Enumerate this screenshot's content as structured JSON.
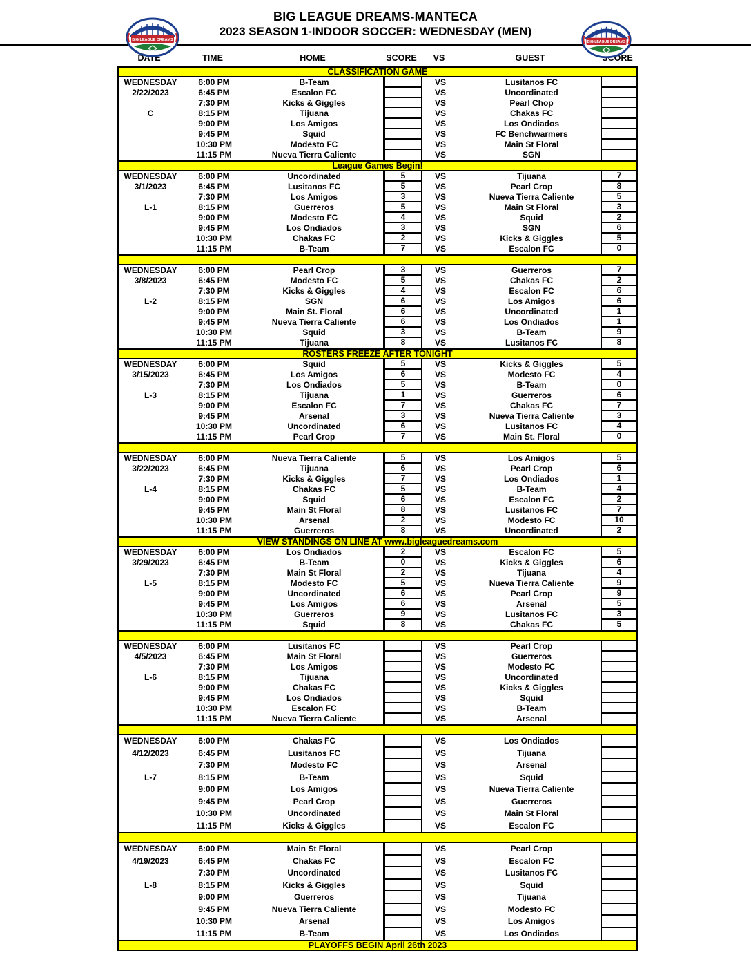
{
  "header": {
    "title": "BIG LEAGUE DREAMS-MANTECA",
    "subtitle": "2023 SEASON 1-INDOOR SOCCER: WEDNESDAY (MEN)",
    "logo_text": "BIG LEAGUE DREAMS"
  },
  "columns": {
    "date": "DATE",
    "time": "TIME",
    "home": "HOME",
    "score_home": "SCORE",
    "vs": "VS",
    "guest": "GUEST",
    "score_guest": "SCORE"
  },
  "vs_label": "VS",
  "footer": {
    "playoffs_banner": "PLAYOFFS BEGIN April 26th 2023"
  },
  "colors": {
    "highlight": "#FFFF00",
    "border": "#000000",
    "logo_blue": "#1b3e8f",
    "logo_red": "#c4242b",
    "logo_green": "#1f7d36"
  },
  "blocks": [
    {
      "day": "WEDNESDAY",
      "date": "2/22/2023",
      "week": "C",
      "banner_above": "CLASSIFICATION GAME",
      "tall": false,
      "rows": [
        {
          "time": "6:00 PM",
          "home": "B-Team",
          "home_score": "",
          "guest": "Lusitanos FC",
          "guest_score": ""
        },
        {
          "time": "6:45 PM",
          "home": "Escalon FC",
          "home_score": "",
          "guest": "Uncordinated",
          "guest_score": ""
        },
        {
          "time": "7:30 PM",
          "home": "Kicks & Giggles",
          "home_score": "",
          "guest": "Pearl Chop",
          "guest_score": ""
        },
        {
          "time": "8:15 PM",
          "home": "Tijuana",
          "home_score": "",
          "guest": "Chakas FC",
          "guest_score": ""
        },
        {
          "time": "9:00 PM",
          "home": "Los Amigos",
          "home_score": "",
          "guest": "Los Ondiados",
          "guest_score": ""
        },
        {
          "time": "9:45 PM",
          "home": "Squid",
          "home_score": "",
          "guest": "FC Benchwarmers",
          "guest_score": ""
        },
        {
          "time": "10:30 PM",
          "home": "Modesto FC",
          "home_score": "",
          "guest": "Main St Floral",
          "guest_score": ""
        },
        {
          "time": "11:15 PM",
          "home": "Nueva Tierra Caliente",
          "home_score": "",
          "guest": "SGN",
          "guest_score": ""
        }
      ]
    },
    {
      "day": "WEDNESDAY",
      "date": "3/1/2023",
      "week": "L-1",
      "banner_above": "League Games Begin!",
      "tall": false,
      "rows": [
        {
          "time": "6:00 PM",
          "home": "Uncordinated",
          "home_score": "5",
          "guest": "Tijuana",
          "guest_score": "7"
        },
        {
          "time": "6:45 PM",
          "home": "Lusitanos FC",
          "home_score": "5",
          "guest": "Pearl Crop",
          "guest_score": "8"
        },
        {
          "time": "7:30 PM",
          "home": "Los Amigos",
          "home_score": "3",
          "guest": "Nueva Tierra Caliente",
          "guest_score": "5"
        },
        {
          "time": "8:15 PM",
          "home": "Guerreros",
          "home_score": "5",
          "guest": "Main St Floral",
          "guest_score": "3"
        },
        {
          "time": "9:00 PM",
          "home": "Modesto FC",
          "home_score": "4",
          "guest": "Squid",
          "guest_score": "2"
        },
        {
          "time": "9:45 PM",
          "home": "Los Ondiados",
          "home_score": "3",
          "guest": "SGN",
          "guest_score": "6"
        },
        {
          "time": "10:30 PM",
          "home": "Chakas FC",
          "home_score": "2",
          "guest": "Kicks & Giggles",
          "guest_score": "5"
        },
        {
          "time": "11:15 PM",
          "home": "B-Team",
          "home_score": "7",
          "guest": "Escalon FC",
          "guest_score": "0"
        }
      ]
    },
    {
      "day": "WEDNESDAY",
      "date": "3/8/2023",
      "week": "L-2",
      "banner_above": "",
      "tall": false,
      "rows": [
        {
          "time": "6:00 PM",
          "home": "Pearl Crop",
          "home_score": "3",
          "guest": "Guerreros",
          "guest_score": "7"
        },
        {
          "time": "6:45 PM",
          "home": "Modesto FC",
          "home_score": "5",
          "guest": "Chakas FC",
          "guest_score": "2"
        },
        {
          "time": "7:30 PM",
          "home": "Kicks & Giggles",
          "home_score": "4",
          "guest": "Escalon FC",
          "guest_score": "6"
        },
        {
          "time": "8:15 PM",
          "home": "SGN",
          "home_score": "6",
          "guest": "Los Amigos",
          "guest_score": "6"
        },
        {
          "time": "9:00 PM",
          "home": "Main St. Floral",
          "home_score": "6",
          "guest": "Uncordinated",
          "guest_score": "1"
        },
        {
          "time": "9:45 PM",
          "home": "Nueva Tierra Caliente",
          "home_score": "6",
          "guest": "Los Ondiados",
          "guest_score": "1"
        },
        {
          "time": "10:30 PM",
          "home": "Squid",
          "home_score": "3",
          "guest": "B-Team",
          "guest_score": "9"
        },
        {
          "time": "11:15 PM",
          "home": "Tijuana",
          "home_score": "8",
          "guest": "Lusitanos FC",
          "guest_score": "8"
        }
      ]
    },
    {
      "day": "WEDNESDAY",
      "date": "3/15/2023",
      "week": "L-3",
      "banner_above": "ROSTERS FREEZE AFTER TONIGHT",
      "tall": false,
      "rows": [
        {
          "time": "6:00 PM",
          "home": "Squid",
          "home_score": "5",
          "guest": "Kicks & Giggles",
          "guest_score": "5"
        },
        {
          "time": "6:45 PM",
          "home": "Los Amigos",
          "home_score": "6",
          "guest": "Modesto FC",
          "guest_score": "4"
        },
        {
          "time": "7:30 PM",
          "home": "Los Ondiados",
          "home_score": "5",
          "guest": "B-Team",
          "guest_score": "0"
        },
        {
          "time": "8:15 PM",
          "home": "Tijuana",
          "home_score": "1",
          "guest": "Guerreros",
          "guest_score": "6"
        },
        {
          "time": "9:00 PM",
          "home": "Escalon FC",
          "home_score": "7",
          "guest": "Chakas FC",
          "guest_score": "7"
        },
        {
          "time": "9:45 PM",
          "home": "Arsenal",
          "home_score": "3",
          "guest": "Nueva Tierra Caliente",
          "guest_score": "3"
        },
        {
          "time": "10:30 PM",
          "home": "Uncordinated",
          "home_score": "6",
          "guest": "Lusitanos FC",
          "guest_score": "4"
        },
        {
          "time": "11:15 PM",
          "home": "Pearl Crop",
          "home_score": "7",
          "guest": "Main St. Floral",
          "guest_score": "0"
        }
      ]
    },
    {
      "day": "WEDNESDAY",
      "date": "3/22/2023",
      "week": "L-4",
      "banner_above": "",
      "tall": false,
      "rows": [
        {
          "time": "6:00 PM",
          "home": "Nueva Tierra Caliente",
          "home_score": "5",
          "guest": "Los Amigos",
          "guest_score": "5"
        },
        {
          "time": "6:45 PM",
          "home": "Tijuana",
          "home_score": "6",
          "guest": "Pearl Crop",
          "guest_score": "6"
        },
        {
          "time": "7:30 PM",
          "home": "Kicks & Giggles",
          "home_score": "7",
          "guest": "Los Ondiados",
          "guest_score": "1"
        },
        {
          "time": "8:15 PM",
          "home": "Chakas FC",
          "home_score": "5",
          "guest": "B-Team",
          "guest_score": "4"
        },
        {
          "time": "9:00 PM",
          "home": "Squid",
          "home_score": "6",
          "guest": "Escalon FC",
          "guest_score": "2"
        },
        {
          "time": "9:45 PM",
          "home": "Main St Floral",
          "home_score": "8",
          "guest": "Lusitanos FC",
          "guest_score": "7"
        },
        {
          "time": "10:30 PM",
          "home": "Arsenal",
          "home_score": "2",
          "guest": "Modesto FC",
          "guest_score": "10"
        },
        {
          "time": "11:15 PM",
          "home": "Guerreros",
          "home_score": "8",
          "guest": "Uncordinated",
          "guest_score": "2"
        }
      ]
    },
    {
      "day": "WEDNESDAY",
      "date": "3/29/2023",
      "week": "L-5",
      "banner_above": "VIEW STANDINGS ON LINE AT www.bigleaguedreams.com",
      "tall": false,
      "rows": [
        {
          "time": "6:00 PM",
          "home": "Los Ondiados",
          "home_score": "2",
          "guest": "Escalon FC",
          "guest_score": "5"
        },
        {
          "time": "6:45 PM",
          "home": "B-Team",
          "home_score": "0",
          "guest": "Kicks & Giggles",
          "guest_score": "6"
        },
        {
          "time": "7:30 PM",
          "home": "Main St Floral",
          "home_score": "2",
          "guest": "Tijuana",
          "guest_score": "4"
        },
        {
          "time": "8:15 PM",
          "home": "Modesto FC",
          "home_score": "5",
          "guest": "Nueva Tierra Caliente",
          "guest_score": "9"
        },
        {
          "time": "9:00 PM",
          "home": "Uncordinated",
          "home_score": "6",
          "guest": "Pearl Crop",
          "guest_score": "9"
        },
        {
          "time": "9:45 PM",
          "home": "Los Amigos",
          "home_score": "6",
          "guest": "Arsenal",
          "guest_score": "5"
        },
        {
          "time": "10:30 PM",
          "home": "Guerreros",
          "home_score": "9",
          "guest": "Lusitanos FC",
          "guest_score": "3"
        },
        {
          "time": "11:15 PM",
          "home": "Squid",
          "home_score": "8",
          "guest": "Chakas FC",
          "guest_score": "5"
        }
      ]
    },
    {
      "day": "WEDNESDAY",
      "date": "4/5/2023",
      "week": "L-6",
      "banner_above": "",
      "tall": false,
      "rows": [
        {
          "time": "6:00 PM",
          "home": "Lusitanos FC",
          "home_score": "",
          "guest": "Pearl Crop",
          "guest_score": ""
        },
        {
          "time": "6:45 PM",
          "home": "Main St Floral",
          "home_score": "",
          "guest": "Guerreros",
          "guest_score": ""
        },
        {
          "time": "7:30 PM",
          "home": "Los Amigos",
          "home_score": "",
          "guest": "Modesto FC",
          "guest_score": ""
        },
        {
          "time": "8:15 PM",
          "home": "Tijuana",
          "home_score": "",
          "guest": "Uncordinated",
          "guest_score": ""
        },
        {
          "time": "9:00 PM",
          "home": "Chakas FC",
          "home_score": "",
          "guest": "Kicks & Giggles",
          "guest_score": ""
        },
        {
          "time": "9:45 PM",
          "home": "Los Ondiados",
          "home_score": "",
          "guest": "Squid",
          "guest_score": ""
        },
        {
          "time": "10:30 PM",
          "home": "Escalon FC",
          "home_score": "",
          "guest": "B-Team",
          "guest_score": ""
        },
        {
          "time": "11:15 PM",
          "home": "Nueva Tierra Caliente",
          "home_score": "",
          "guest": "Arsenal",
          "guest_score": ""
        }
      ]
    },
    {
      "day": "WEDNESDAY",
      "date": "4/12/2023",
      "week": "L-7",
      "banner_above": "",
      "tall": true,
      "rows": [
        {
          "time": "6:00 PM",
          "home": "Chakas FC",
          "home_score": "",
          "guest": "Los Ondiados",
          "guest_score": ""
        },
        {
          "time": "6:45 PM",
          "home": "Lusitanos FC",
          "home_score": "",
          "guest": "Tijuana",
          "guest_score": ""
        },
        {
          "time": "7:30 PM",
          "home": "Modesto FC",
          "home_score": "",
          "guest": "Arsenal",
          "guest_score": ""
        },
        {
          "time": "8:15 PM",
          "home": "B-Team",
          "home_score": "",
          "guest": "Squid",
          "guest_score": ""
        },
        {
          "time": "9:00 PM",
          "home": "Los Amigos",
          "home_score": "",
          "guest": "Nueva Tierra Caliente",
          "guest_score": ""
        },
        {
          "time": "9:45 PM",
          "home": "Pearl Crop",
          "home_score": "",
          "guest": "Guerreros",
          "guest_score": ""
        },
        {
          "time": "10:30 PM",
          "home": "Uncordinated",
          "home_score": "",
          "guest": "Main St Floral",
          "guest_score": ""
        },
        {
          "time": "11:15 PM",
          "home": "Kicks & Giggles",
          "home_score": "",
          "guest": "Escalon FC",
          "guest_score": ""
        }
      ]
    },
    {
      "day": "WEDNESDAY",
      "date": "4/19/2023",
      "week": "L-8",
      "banner_above": "",
      "tall": true,
      "rows": [
        {
          "time": "6:00 PM",
          "home": "Main St Floral",
          "home_score": "",
          "guest": "Pearl Crop",
          "guest_score": ""
        },
        {
          "time": "6:45 PM",
          "home": "Chakas FC",
          "home_score": "",
          "guest": "Escalon FC",
          "guest_score": ""
        },
        {
          "time": "7:30 PM",
          "home": "Uncordinated",
          "home_score": "",
          "guest": "Lusitanos FC",
          "guest_score": ""
        },
        {
          "time": "8:15 PM",
          "home": "Kicks & Giggles",
          "home_score": "",
          "guest": "Squid",
          "guest_score": ""
        },
        {
          "time": "9:00 PM",
          "home": "Guerreros",
          "home_score": "",
          "guest": "Tijuana",
          "guest_score": ""
        },
        {
          "time": "9:45 PM",
          "home": "Nueva Tierra Caliente",
          "home_score": "",
          "guest": "Modesto FC",
          "guest_score": ""
        },
        {
          "time": "10:30 PM",
          "home": "Arsenal",
          "home_score": "",
          "guest": "Los Amigos",
          "guest_score": ""
        },
        {
          "time": "11:15 PM",
          "home": "B-Team",
          "home_score": "",
          "guest": "Los Ondiados",
          "guest_score": ""
        }
      ]
    }
  ]
}
